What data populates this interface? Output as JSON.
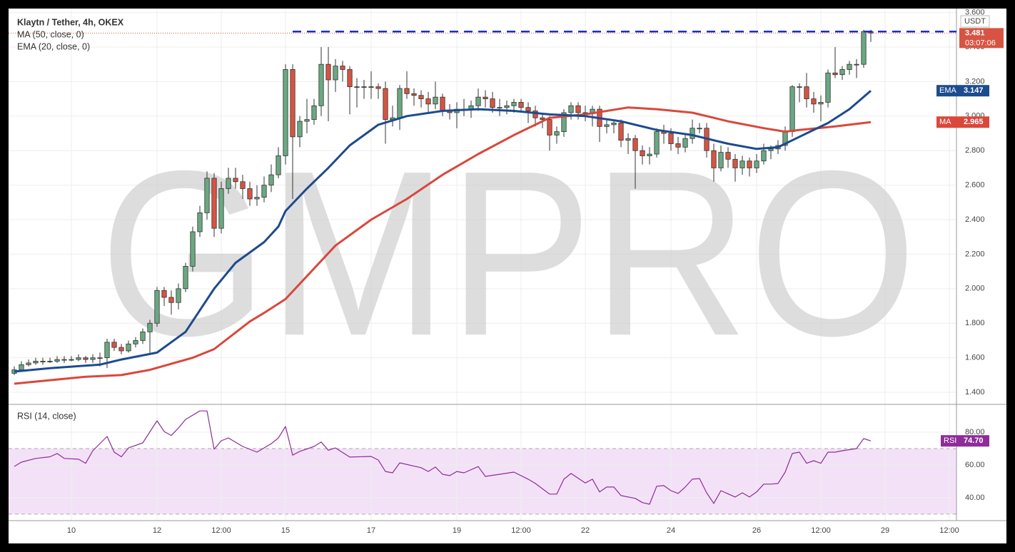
{
  "chart_data": {
    "type": "candlestick",
    "title": "Klaytn / Tether, 4h, OKEX",
    "watermark": "GMPRO",
    "quote": "USDT",
    "countdown": "03:07:06",
    "up_color": "#6aa882",
    "down_color": "#d75442",
    "grid": true,
    "xlim": [
      -0.8,
      132
    ],
    "xticks": [
      {
        "value": 8,
        "label": "10"
      },
      {
        "value": 20,
        "label": "12"
      },
      {
        "value": 29,
        "label": "12:00"
      },
      {
        "value": 38,
        "label": "15"
      },
      {
        "value": 50,
        "label": "17"
      },
      {
        "value": 62,
        "label": "19"
      },
      {
        "value": 71,
        "label": "12:00"
      },
      {
        "value": 80,
        "label": "22"
      },
      {
        "value": 92,
        "label": "24"
      },
      {
        "value": 104,
        "label": "26"
      },
      {
        "value": 113,
        "label": "12:00"
      },
      {
        "value": 122,
        "label": "29"
      },
      {
        "value": 131,
        "label": "12:00"
      }
    ],
    "ylim": [
      1.33,
      3.623
    ],
    "yticks": [
      {
        "value": 1.4,
        "label": "1.400"
      },
      {
        "value": 1.6,
        "label": "1.600"
      },
      {
        "value": 1.8,
        "label": "1.800"
      },
      {
        "value": 2.0,
        "label": "2.000"
      },
      {
        "value": 2.2,
        "label": "2.200"
      },
      {
        "value": 2.4,
        "label": "2.400"
      },
      {
        "value": 2.6,
        "label": "2.600"
      },
      {
        "value": 2.8,
        "label": "2.800"
      },
      {
        "value": 3.0,
        "label": "3.000"
      },
      {
        "value": 3.2,
        "label": "3.200"
      },
      {
        "value": 3.4,
        "label": "3.400"
      },
      {
        "value": 3.6,
        "label": "3.600"
      }
    ],
    "candles": [
      [
        1.51,
        1.55,
        1.5,
        1.53
      ],
      [
        1.53,
        1.58,
        1.52,
        1.56
      ],
      [
        1.56,
        1.59,
        1.55,
        1.57
      ],
      [
        1.57,
        1.6,
        1.56,
        1.58
      ],
      [
        1.58,
        1.6,
        1.56,
        1.58
      ],
      [
        1.58,
        1.6,
        1.57,
        1.58
      ],
      [
        1.58,
        1.61,
        1.57,
        1.59
      ],
      [
        1.59,
        1.61,
        1.57,
        1.59
      ],
      [
        1.59,
        1.61,
        1.58,
        1.59
      ],
      [
        1.59,
        1.62,
        1.58,
        1.6
      ],
      [
        1.6,
        1.61,
        1.57,
        1.59
      ],
      [
        1.59,
        1.62,
        1.57,
        1.6
      ],
      [
        1.6,
        1.63,
        1.55,
        1.6
      ],
      [
        1.6,
        1.71,
        1.54,
        1.69
      ],
      [
        1.69,
        1.71,
        1.64,
        1.66
      ],
      [
        1.66,
        1.68,
        1.62,
        1.64
      ],
      [
        1.64,
        1.7,
        1.63,
        1.68
      ],
      [
        1.68,
        1.72,
        1.66,
        1.7
      ],
      [
        1.7,
        1.77,
        1.68,
        1.75
      ],
      [
        1.75,
        1.82,
        1.62,
        1.8
      ],
      [
        1.8,
        2.01,
        1.78,
        1.99
      ],
      [
        1.99,
        2.01,
        1.9,
        1.95
      ],
      [
        1.95,
        1.99,
        1.85,
        1.92
      ],
      [
        1.92,
        2.03,
        1.88,
        2.0
      ],
      [
        2.0,
        2.15,
        1.98,
        2.13
      ],
      [
        2.13,
        2.36,
        2.1,
        2.33
      ],
      [
        2.33,
        2.48,
        2.3,
        2.44
      ],
      [
        2.44,
        2.68,
        2.4,
        2.64
      ],
      [
        2.64,
        2.67,
        2.3,
        2.35
      ],
      [
        2.35,
        2.62,
        2.32,
        2.58
      ],
      [
        2.58,
        2.7,
        2.55,
        2.64
      ],
      [
        2.64,
        2.7,
        2.58,
        2.62
      ],
      [
        2.62,
        2.66,
        2.52,
        2.58
      ],
      [
        2.58,
        2.62,
        2.48,
        2.52
      ],
      [
        2.52,
        2.6,
        2.48,
        2.53
      ],
      [
        2.53,
        2.65,
        2.5,
        2.6
      ],
      [
        2.6,
        2.72,
        2.56,
        2.66
      ],
      [
        2.66,
        2.82,
        2.64,
        2.77
      ],
      [
        2.77,
        3.3,
        2.72,
        3.27
      ],
      [
        3.27,
        3.3,
        2.52,
        2.88
      ],
      [
        2.88,
        3.0,
        2.82,
        2.97
      ],
      [
        2.97,
        3.1,
        2.9,
        2.98
      ],
      [
        2.98,
        3.1,
        2.95,
        3.06
      ],
      [
        3.06,
        3.4,
        3.0,
        3.3
      ],
      [
        3.3,
        3.4,
        2.97,
        3.21
      ],
      [
        3.21,
        3.33,
        3.14,
        3.29
      ],
      [
        3.29,
        3.32,
        3.2,
        3.27
      ],
      [
        3.27,
        3.29,
        3.01,
        3.17
      ],
      [
        3.17,
        3.22,
        3.05,
        3.17
      ],
      [
        3.17,
        3.21,
        3.1,
        3.17
      ],
      [
        3.17,
        3.26,
        3.1,
        3.17
      ],
      [
        3.17,
        3.19,
        3.1,
        3.16
      ],
      [
        3.16,
        3.2,
        2.84,
        2.98
      ],
      [
        2.98,
        3.06,
        2.94,
        2.99
      ],
      [
        2.99,
        3.18,
        2.92,
        3.16
      ],
      [
        3.16,
        3.26,
        3.1,
        3.13
      ],
      [
        3.13,
        3.16,
        3.06,
        3.12
      ],
      [
        3.12,
        3.15,
        3.05,
        3.1
      ],
      [
        3.1,
        3.14,
        3.02,
        3.07
      ],
      [
        3.07,
        3.2,
        3.04,
        3.11
      ],
      [
        3.11,
        3.13,
        3.0,
        3.03
      ],
      [
        3.03,
        3.07,
        2.98,
        3.02
      ],
      [
        3.02,
        3.08,
        2.93,
        3.04
      ],
      [
        3.04,
        3.1,
        3.0,
        3.04
      ],
      [
        3.04,
        3.09,
        2.99,
        3.06
      ],
      [
        3.06,
        3.16,
        3.03,
        3.11
      ],
      [
        3.11,
        3.15,
        3.05,
        3.1
      ],
      [
        3.1,
        3.14,
        3.02,
        3.05
      ],
      [
        3.05,
        3.1,
        3.0,
        3.05
      ],
      [
        3.05,
        3.09,
        3.01,
        3.06
      ],
      [
        3.06,
        3.1,
        3.02,
        3.08
      ],
      [
        3.08,
        3.1,
        3.02,
        3.05
      ],
      [
        3.05,
        3.08,
        2.96,
        3.03
      ],
      [
        3.03,
        3.06,
        2.94,
        2.99
      ],
      [
        2.99,
        3.02,
        2.93,
        2.98
      ],
      [
        2.98,
        3.0,
        2.8,
        2.89
      ],
      [
        2.89,
        2.94,
        2.84,
        2.91
      ],
      [
        2.91,
        3.04,
        2.88,
        3.02
      ],
      [
        3.02,
        3.08,
        2.98,
        3.06
      ],
      [
        3.06,
        3.08,
        2.98,
        3.02
      ],
      [
        3.02,
        3.06,
        2.97,
        3.02
      ],
      [
        3.02,
        3.06,
        2.94,
        3.04
      ],
      [
        3.04,
        3.06,
        2.85,
        2.94
      ],
      [
        2.94,
        2.98,
        2.9,
        2.95
      ],
      [
        2.95,
        2.98,
        2.9,
        2.96
      ],
      [
        2.96,
        2.98,
        2.82,
        2.86
      ],
      [
        2.86,
        2.9,
        2.78,
        2.87
      ],
      [
        2.87,
        2.89,
        2.58,
        2.8
      ],
      [
        2.8,
        2.83,
        2.72,
        2.77
      ],
      [
        2.77,
        2.82,
        2.72,
        2.78
      ],
      [
        2.78,
        2.93,
        2.76,
        2.91
      ],
      [
        2.91,
        2.95,
        2.84,
        2.9
      ],
      [
        2.9,
        2.93,
        2.8,
        2.84
      ],
      [
        2.84,
        2.88,
        2.78,
        2.82
      ],
      [
        2.82,
        2.9,
        2.79,
        2.87
      ],
      [
        2.87,
        2.98,
        2.84,
        2.93
      ],
      [
        2.93,
        2.96,
        2.9,
        2.93
      ],
      [
        2.93,
        2.96,
        2.76,
        2.8
      ],
      [
        2.8,
        2.84,
        2.62,
        2.7
      ],
      [
        2.7,
        2.83,
        2.68,
        2.79
      ],
      [
        2.79,
        2.82,
        2.7,
        2.75
      ],
      [
        2.75,
        2.78,
        2.62,
        2.7
      ],
      [
        2.7,
        2.77,
        2.66,
        2.74
      ],
      [
        2.74,
        2.76,
        2.65,
        2.7
      ],
      [
        2.7,
        2.78,
        2.67,
        2.74
      ],
      [
        2.74,
        2.84,
        2.72,
        2.8
      ],
      [
        2.8,
        2.83,
        2.75,
        2.81
      ],
      [
        2.81,
        2.86,
        2.78,
        2.83
      ],
      [
        2.83,
        2.94,
        2.8,
        2.91
      ],
      [
        2.91,
        3.18,
        2.88,
        3.17
      ],
      [
        3.17,
        3.19,
        3.08,
        3.17
      ],
      [
        3.17,
        3.25,
        3.05,
        3.1
      ],
      [
        3.1,
        3.14,
        3.02,
        3.07
      ],
      [
        3.07,
        3.12,
        2.97,
        3.08
      ],
      [
        3.08,
        3.27,
        3.05,
        3.25
      ],
      [
        3.25,
        3.4,
        3.22,
        3.24
      ],
      [
        3.24,
        3.29,
        3.21,
        3.27
      ],
      [
        3.27,
        3.32,
        3.24,
        3.3
      ],
      [
        3.3,
        3.33,
        3.22,
        3.3
      ],
      [
        3.3,
        3.5,
        3.28,
        3.49
      ],
      [
        3.49,
        3.5,
        3.43,
        3.481
      ]
    ],
    "overlays": [
      {
        "name": "MA",
        "legend": "MA (50, close, 0)",
        "color": "#d9483b",
        "x": [
          0,
          10,
          15,
          19,
          25,
          28,
          33,
          35,
          38,
          45,
          50,
          55,
          60,
          65,
          70,
          75,
          80,
          86,
          90,
          95,
          98,
          100,
          105,
          108,
          110,
          115,
          120
        ],
        "values": [
          1.45,
          1.49,
          1.5,
          1.53,
          1.6,
          1.65,
          1.81,
          1.86,
          1.94,
          2.25,
          2.4,
          2.52,
          2.66,
          2.78,
          2.89,
          2.99,
          3.01,
          3.05,
          3.04,
          3.02,
          2.99,
          2.97,
          2.93,
          2.91,
          2.92,
          2.94,
          2.965
        ]
      },
      {
        "name": "EMA",
        "legend": "EMA (20, close, 0)",
        "color": "#1c4b8f",
        "x": [
          0,
          5,
          12,
          15,
          20,
          24,
          28,
          31,
          33,
          35,
          37,
          38,
          41,
          44,
          47,
          51,
          55,
          60,
          65,
          70,
          75,
          80,
          85,
          90,
          95,
          100,
          104,
          107,
          110,
          114,
          117,
          120
        ],
        "values": [
          1.52,
          1.54,
          1.56,
          1.59,
          1.63,
          1.75,
          2.0,
          2.15,
          2.21,
          2.27,
          2.36,
          2.45,
          2.58,
          2.7,
          2.83,
          2.95,
          3.0,
          3.03,
          3.04,
          3.03,
          3.01,
          3.0,
          2.97,
          2.92,
          2.89,
          2.84,
          2.81,
          2.82,
          2.88,
          2.96,
          3.04,
          3.147
        ]
      }
    ],
    "hline": {
      "value": 3.49,
      "from": 39,
      "color": "#1a2fc4"
    },
    "rsi": {
      "name": "RSI",
      "legend": "RSI (14, close)",
      "color": "#8e2c9a",
      "band_color": "#f3e2f7",
      "ylim": [
        26,
        97
      ],
      "band": [
        30,
        70
      ],
      "yticks": [
        {
          "value": 40,
          "label": "40.00"
        },
        {
          "value": 60,
          "label": "60.00"
        },
        {
          "value": 80,
          "label": "80.00"
        }
      ],
      "x": [
        0,
        1,
        3,
        5,
        6,
        7,
        9,
        10,
        11,
        13,
        14,
        15,
        16,
        18,
        20,
        21,
        22,
        23,
        24,
        26,
        27,
        28,
        29,
        30,
        32,
        34,
        36,
        37,
        38,
        39,
        40,
        42,
        43,
        44,
        45,
        47,
        50,
        51,
        52,
        53,
        54,
        57,
        58,
        59,
        60,
        61,
        62,
        63,
        65,
        66,
        68,
        70,
        72,
        73,
        75,
        76,
        77,
        78,
        80,
        81,
        82,
        83,
        84,
        85,
        87,
        88,
        89,
        90,
        91,
        92,
        93,
        94,
        95,
        96,
        97,
        98,
        99,
        101,
        102,
        103,
        104,
        105,
        106,
        107,
        108,
        109,
        110,
        111,
        112,
        113,
        114,
        115,
        116,
        118,
        119,
        120
      ],
      "values": [
        59.1,
        61.7,
        64,
        65,
        67,
        64,
        63.5,
        61,
        68.7,
        77.4,
        67.8,
        65,
        70.4,
        73.5,
        87,
        80.4,
        78,
        82.6,
        87.8,
        93,
        93,
        69.6,
        74.8,
        76.5,
        71.3,
        67.8,
        73,
        76.5,
        83.5,
        66,
        68.3,
        71.3,
        74,
        69,
        70.4,
        64.8,
        65.2,
        63,
        56,
        55.2,
        61.3,
        58.3,
        56,
        58.7,
        54.3,
        53.5,
        56,
        55.2,
        59,
        53,
        54.3,
        55.6,
        51.3,
        48.7,
        42.2,
        42.2,
        51.3,
        54.8,
        49,
        51.3,
        43.5,
        46.5,
        46.5,
        41.3,
        39.6,
        37,
        36,
        47,
        47.4,
        44.3,
        42.6,
        46.5,
        51.3,
        51.7,
        43,
        36.5,
        44.3,
        40.4,
        43,
        40.4,
        43.5,
        48.3,
        48.3,
        48.7,
        55.6,
        67,
        67.8,
        61,
        62.6,
        61,
        67.8,
        67.8,
        68.7,
        70,
        76.1,
        74.7
      ],
      "last_label": "74.70"
    }
  }
}
